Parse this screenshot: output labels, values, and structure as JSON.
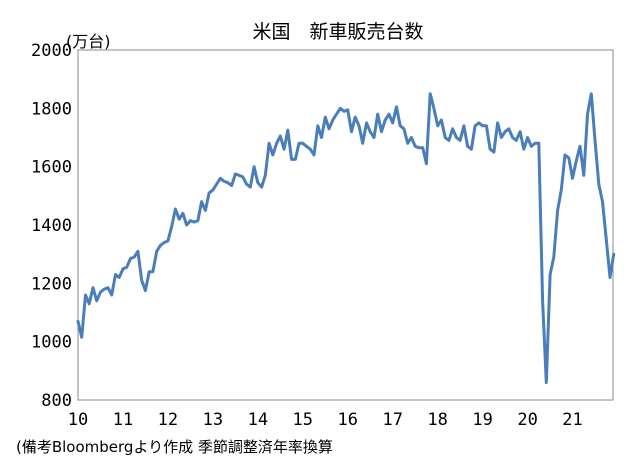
{
  "chart_data": {
    "type": "line",
    "title": "米国　新車販売台数",
    "unit_label": "(万台)",
    "xlabel": "",
    "ylabel": "",
    "ylim": [
      800,
      2000
    ],
    "y_ticks": [
      800,
      1000,
      1200,
      1400,
      1600,
      1800,
      2000
    ],
    "x_tick_labels": [
      "10",
      "11",
      "12",
      "13",
      "14",
      "15",
      "16",
      "17",
      "18",
      "19",
      "20",
      "21"
    ],
    "x_range": [
      2010.0,
      2021.9
    ],
    "grid": false,
    "color": "#4a7ebb",
    "series": [
      {
        "x_start": "2010-01",
        "frequency": "monthly",
        "values": [
          1070,
          1015,
          1160,
          1130,
          1185,
          1140,
          1170,
          1180,
          1185,
          1160,
          1230,
          1220,
          1250,
          1255,
          1285,
          1290,
          1310,
          1210,
          1175,
          1240,
          1240,
          1310,
          1330,
          1340,
          1345,
          1395,
          1455,
          1420,
          1440,
          1400,
          1415,
          1410,
          1415,
          1480,
          1450,
          1510,
          1520,
          1540,
          1560,
          1550,
          1545,
          1535,
          1575,
          1570,
          1565,
          1540,
          1530,
          1600,
          1545,
          1530,
          1570,
          1680,
          1640,
          1680,
          1705,
          1660,
          1725,
          1625,
          1625,
          1680,
          1680,
          1670,
          1660,
          1640,
          1740,
          1700,
          1770,
          1730,
          1760,
          1780,
          1800,
          1790,
          1795,
          1720,
          1770,
          1740,
          1680,
          1750,
          1720,
          1700,
          1780,
          1720,
          1760,
          1780,
          1750,
          1805,
          1740,
          1730,
          1680,
          1700,
          1670,
          1665,
          1665,
          1610,
          1850,
          1800,
          1740,
          1760,
          1700,
          1690,
          1730,
          1700,
          1690,
          1740,
          1670,
          1660,
          1740,
          1750,
          1740,
          1740,
          1660,
          1650,
          1750,
          1700,
          1720,
          1730,
          1700,
          1690,
          1720,
          1660,
          1700,
          1670,
          1680,
          1680,
          1140,
          860,
          1230,
          1290,
          1450,
          1520,
          1640,
          1630,
          1560,
          1620,
          1670,
          1570,
          1780,
          1850,
          1690,
          1540,
          1480,
          1350,
          1220,
          1300
        ]
      }
    ]
  },
  "footnote": "(備考Bloombergより作成 季節調整済年率換算"
}
